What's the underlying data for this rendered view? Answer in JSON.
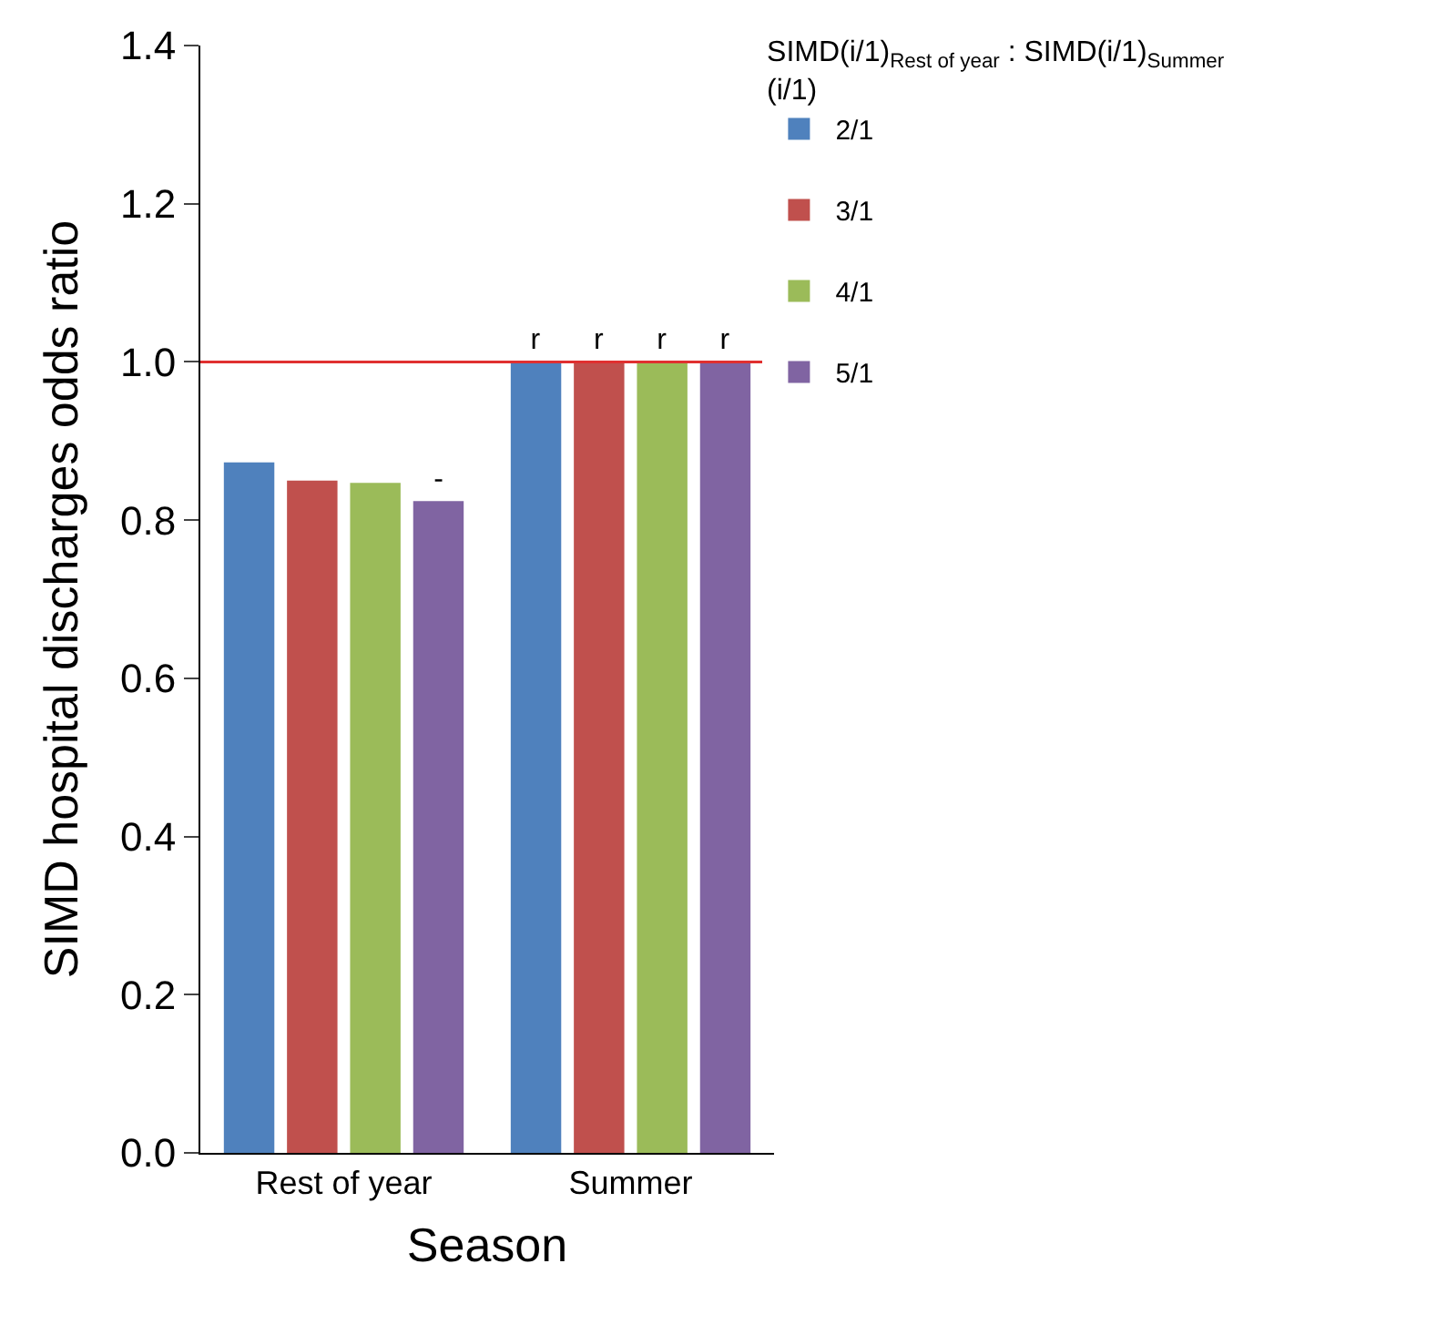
{
  "chart_data": {
    "type": "bar",
    "xlabel": "Season",
    "ylabel": "SIMD hospital discharges odds ratio",
    "legend_title": "SIMD(i/1)$_{Rest of year}$ : SIMD(i/1)$_{Summer}$ (i/1)",
    "categories": [
      "Rest of year",
      "Summer"
    ],
    "series": [
      {
        "name": "2/1",
        "color": "#4f81bd",
        "values": [
          0.873,
          1.0
        ],
        "value_labels": [
          null,
          "r"
        ]
      },
      {
        "name": "3/1",
        "color": "#c0504d",
        "values": [
          0.85,
          1.0
        ],
        "value_labels": [
          null,
          "r"
        ]
      },
      {
        "name": "4/1",
        "color": "#9bbb59",
        "values": [
          0.847,
          1.0
        ],
        "value_labels": [
          null,
          "r"
        ]
      },
      {
        "name": "5/1",
        "color": "#8064a2",
        "values": [
          0.824,
          1.0
        ],
        "value_labels": [
          "-",
          "r"
        ]
      }
    ],
    "ylim": [
      0,
      1.4
    ],
    "yticks": [
      {
        "value": 0,
        "label": "0.0"
      },
      {
        "value": 0.2,
        "label": "0.2"
      },
      {
        "value": 0.4,
        "label": "0.4"
      },
      {
        "value": 0.6,
        "label": "0.6"
      },
      {
        "value": 0.8,
        "label": "0.8"
      },
      {
        "value": 1,
        "label": "1.0"
      },
      {
        "value": 1.2,
        "label": "1.2"
      },
      {
        "value": 1.4,
        "label": "1.4"
      }
    ],
    "ref_lines": [
      {
        "axis": "y",
        "value": 1.0,
        "color": "#e03030"
      }
    ],
    "legend": "right"
  }
}
